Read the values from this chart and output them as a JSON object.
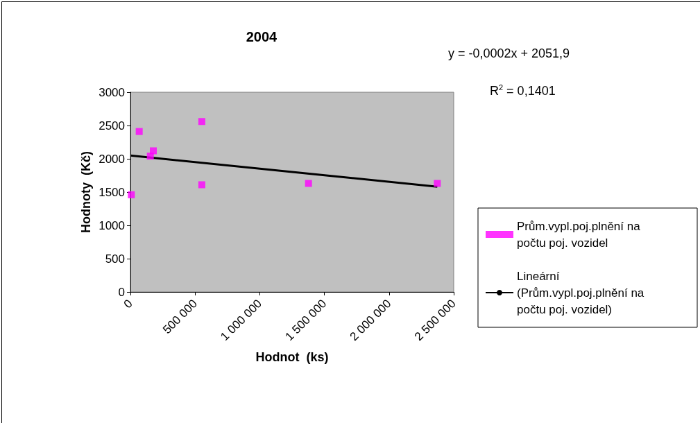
{
  "chart_data": {
    "type": "scatter",
    "title": "2004",
    "xlabel": "Hodnot  (ks)",
    "ylabel": "Hodnoty  (Kč)",
    "annotations": [
      "y = -0,0002x + 2051,9",
      "R$^{2}$ = 0,1401"
    ],
    "xlim": [
      0,
      2500000
    ],
    "xticks": [
      {
        "value": 0,
        "label": "0"
      },
      {
        "value": 500000,
        "label": "500 000"
      },
      {
        "value": 1000000,
        "label": "1 000 000"
      },
      {
        "value": 1500000,
        "label": "1 500 000"
      },
      {
        "value": 2000000,
        "label": "2 000 000"
      },
      {
        "value": 2500000,
        "label": "2 500 000"
      }
    ],
    "ylim": [
      0,
      3000
    ],
    "yticks": [
      0,
      500,
      1000,
      1500,
      2000,
      2500,
      3000
    ],
    "grid": false,
    "legend": "right",
    "marker": "square",
    "series": [
      {
        "name": "Prům.vypl.poj.plnění na počtu poj. vozidel",
        "color": "#ff00ff",
        "x": [
          7000,
          68000,
          154000,
          177000,
          552000,
          552000,
          1377000,
          2373000
        ],
        "values": [
          1460,
          2410,
          2040,
          2120,
          2560,
          1610,
          1630,
          1630
        ]
      },
      {
        "type": "line",
        "name": "Lineární (Prům.vypl.poj.plnění na počtu poj. vozidel)",
        "color": "#000000",
        "marker": "none",
        "line_style": "solid",
        "x": [
          0,
          2373000
        ],
        "values": [
          2050,
          1580
        ]
      }
    ]
  }
}
